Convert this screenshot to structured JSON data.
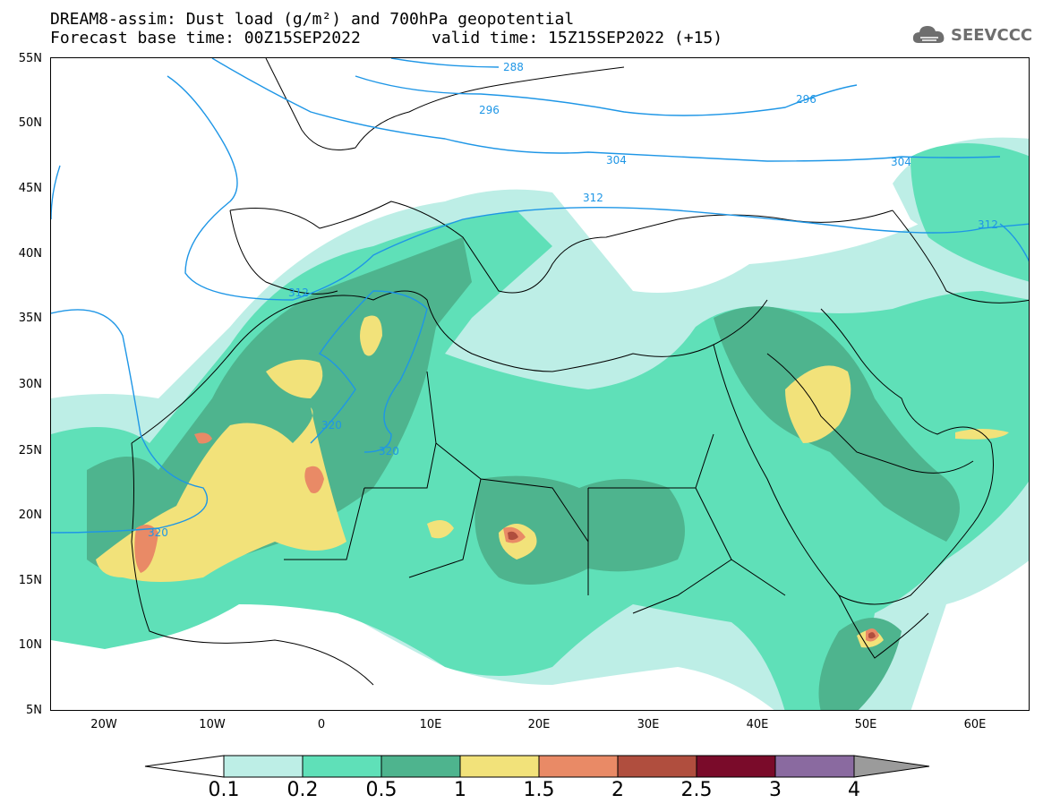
{
  "header": {
    "line1": "DREAM8-assim: Dust load (g/m²) and 700hPa geopotential",
    "line2": "Forecast base time: 00Z15SEP2022",
    "valid": "valid time: 15Z15SEP2022 (+15)"
  },
  "logo": {
    "text": "SEEVCCC",
    "icon": "cloud-icon"
  },
  "axes": {
    "lat_labels": [
      "55N",
      "50N",
      "45N",
      "40N",
      "35N",
      "30N",
      "25N",
      "20N",
      "15N",
      "10N",
      "5N"
    ],
    "lon_labels": [
      "20W",
      "10W",
      "0",
      "10E",
      "20E",
      "30E",
      "40E",
      "50E",
      "60E"
    ],
    "lon_range": [
      -25,
      65
    ],
    "lat_range": [
      5,
      55
    ]
  },
  "contours": {
    "labels": [
      "288",
      "296",
      "296",
      "304",
      "304",
      "312",
      "312",
      "312",
      "320",
      "320",
      "320"
    ],
    "color": "#1e96e6"
  },
  "colorbar": {
    "colors": [
      "#ffffff",
      "#bdeee6",
      "#5fe0b8",
      "#4eb48e",
      "#f2e27a",
      "#e98a66",
      "#b04e3e",
      "#7a0b2a",
      "#8a6aa0",
      "#9b9b9b"
    ],
    "ticks": [
      "0.1",
      "0.2",
      "0.5",
      "1",
      "1.5",
      "2",
      "2.5",
      "3",
      "4"
    ]
  }
}
